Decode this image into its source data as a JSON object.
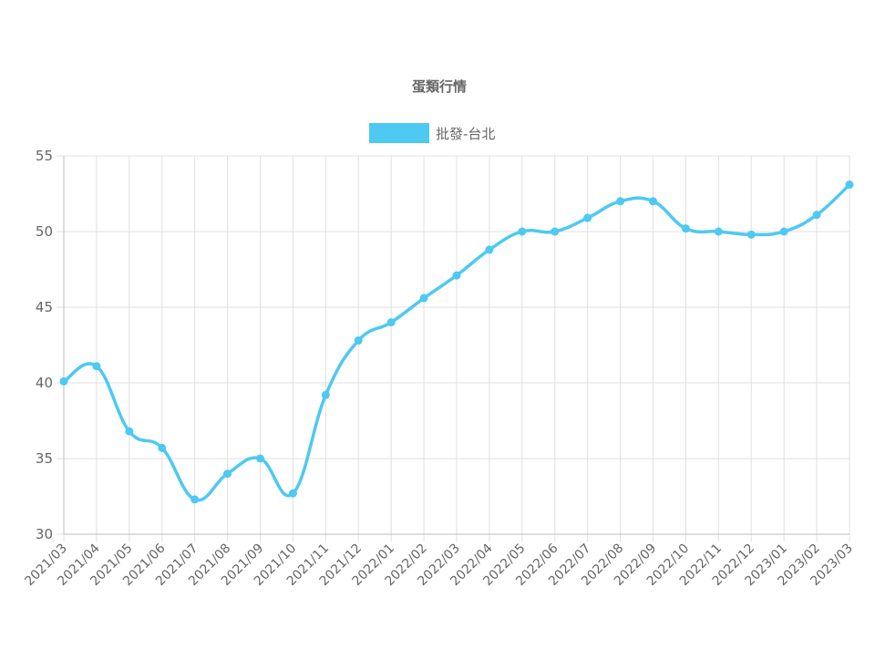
{
  "colors": {
    "series": "#4ec9f1",
    "grid": "#e0e0e0",
    "axis": "#bfbfbf",
    "tick_text": "#666666",
    "title_text": "#666666"
  },
  "chart_data": {
    "type": "line",
    "title": "蛋類行情",
    "legend_position": "top",
    "grid": true,
    "categories": [
      "2021/03",
      "2021/04",
      "2021/05",
      "2021/06",
      "2021/07",
      "2021/08",
      "2021/09",
      "2021/10",
      "2021/11",
      "2021/12",
      "2022/01",
      "2022/02",
      "2022/03",
      "2022/04",
      "2022/05",
      "2022/06",
      "2022/07",
      "2022/08",
      "2022/09",
      "2022/10",
      "2022/11",
      "2022/12",
      "2023/01",
      "2023/02",
      "2023/03"
    ],
    "series": [
      {
        "name": "批發-台北",
        "values": [
          40.1,
          41.1,
          36.8,
          35.7,
          32.3,
          34.0,
          35.0,
          32.7,
          39.2,
          42.8,
          44.0,
          45.6,
          47.1,
          48.8,
          50.0,
          50.0,
          50.9,
          52.0,
          52.0,
          50.2,
          50.0,
          49.8,
          50.0,
          51.1,
          53.1
        ]
      }
    ],
    "ylim": [
      30,
      55
    ],
    "yticks": [
      30,
      35,
      40,
      45,
      50,
      55
    ]
  }
}
